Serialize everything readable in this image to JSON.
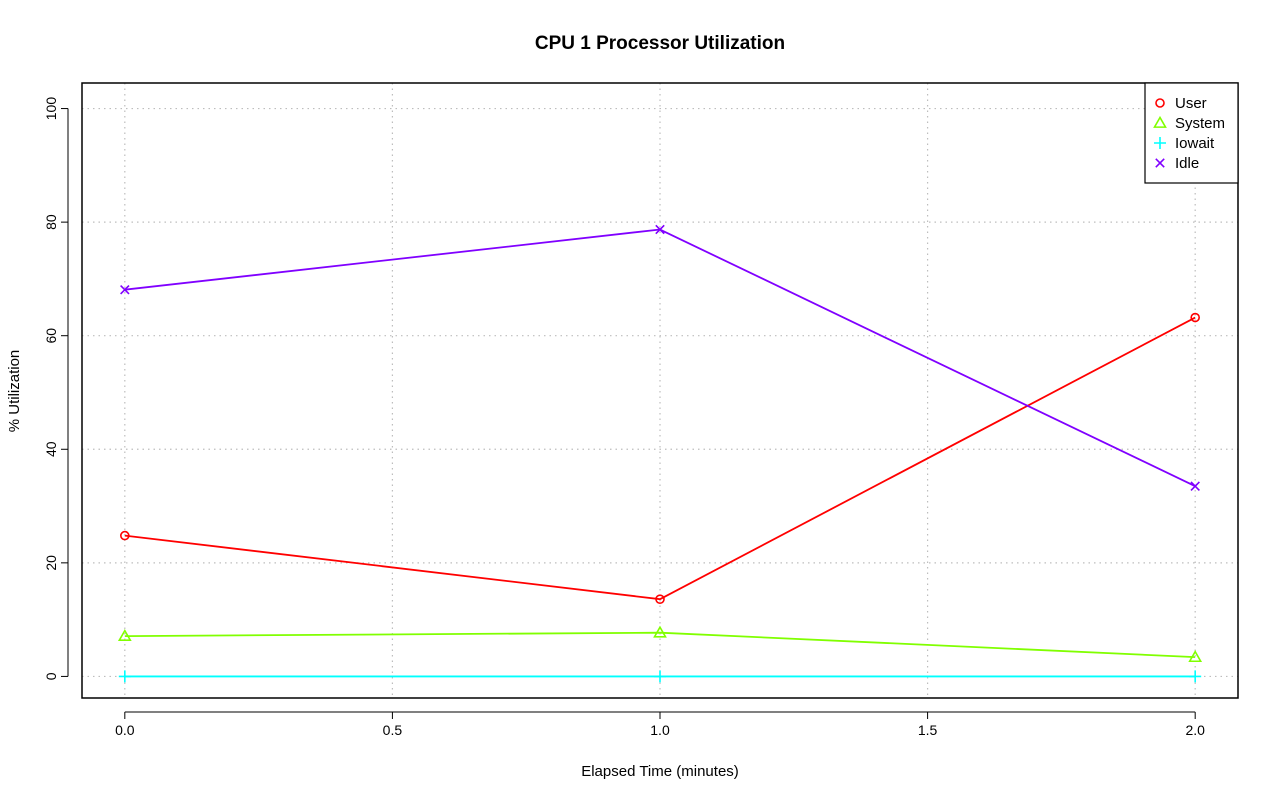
{
  "chart_data": {
    "type": "line",
    "title": "CPU  1  Processor Utilization",
    "xlabel": "Elapsed Time (minutes)",
    "ylabel": "% Utilization",
    "x": [
      0.0,
      1.0,
      2.0
    ],
    "xlim": [
      -0.08,
      2.08
    ],
    "ylim": [
      -3.8,
      104.5
    ],
    "x_ticks": [
      0.0,
      0.5,
      1.0,
      1.5,
      2.0
    ],
    "x_tick_labels": [
      "0.0",
      "0.5",
      "1.0",
      "1.5",
      "2.0"
    ],
    "y_ticks": [
      0,
      20,
      40,
      60,
      80,
      100
    ],
    "y_tick_labels": [
      "0",
      "20",
      "40",
      "60",
      "80",
      "100"
    ],
    "grid": true,
    "legend_position": "top-right",
    "series": [
      {
        "name": "User",
        "values": [
          24.8,
          13.6,
          63.2
        ],
        "color": "#ff0000",
        "marker": "circle"
      },
      {
        "name": "System",
        "values": [
          7.1,
          7.7,
          3.4
        ],
        "color": "#80ff00",
        "marker": "triangle"
      },
      {
        "name": "Iowait",
        "values": [
          0.0,
          0.0,
          0.0
        ],
        "color": "#00ffff",
        "marker": "plus"
      },
      {
        "name": "Idle",
        "values": [
          68.1,
          78.7,
          33.5
        ],
        "color": "#8000ff",
        "marker": "cross"
      }
    ]
  }
}
